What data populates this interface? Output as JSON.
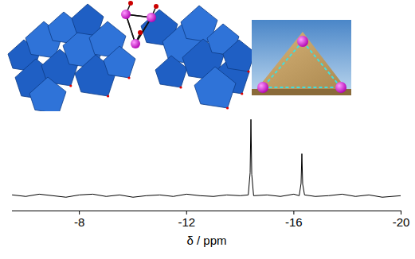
{
  "chart_data": {
    "type": "line",
    "x_label": "δ / ppm",
    "x": [
      -5.5,
      -6,
      -6.5,
      -7,
      -7.5,
      -8,
      -8.5,
      -9,
      -9.5,
      -10,
      -10.5,
      -11,
      -11.5,
      -12,
      -12.5,
      -13,
      -13.5,
      -14,
      -14.3,
      -14.37,
      -14.4,
      -14.43,
      -14.5,
      -15,
      -15.5,
      -16,
      -16.2,
      -16.27,
      -16.3,
      -16.33,
      -16.4,
      -16.8,
      -17.3,
      -17.8,
      -18.3,
      -18.8,
      -19.3,
      -20
    ],
    "values": [
      1,
      -1,
      2,
      0,
      -2,
      1,
      2,
      -1,
      1,
      -2,
      0,
      1,
      -1,
      2,
      0,
      -1,
      1,
      0,
      1,
      30,
      100,
      28,
      0,
      1,
      -1,
      2,
      0,
      16,
      55,
      15,
      1,
      -1,
      0,
      2,
      -1,
      1,
      -2,
      0
    ],
    "color": "#000000",
    "xlim": [
      -5.5,
      -20
    ],
    "xticks": [
      -8,
      -12,
      -16,
      -20
    ],
    "ylim": [
      -20,
      105
    ],
    "tick_labels": "x",
    "grid": false
  }
}
